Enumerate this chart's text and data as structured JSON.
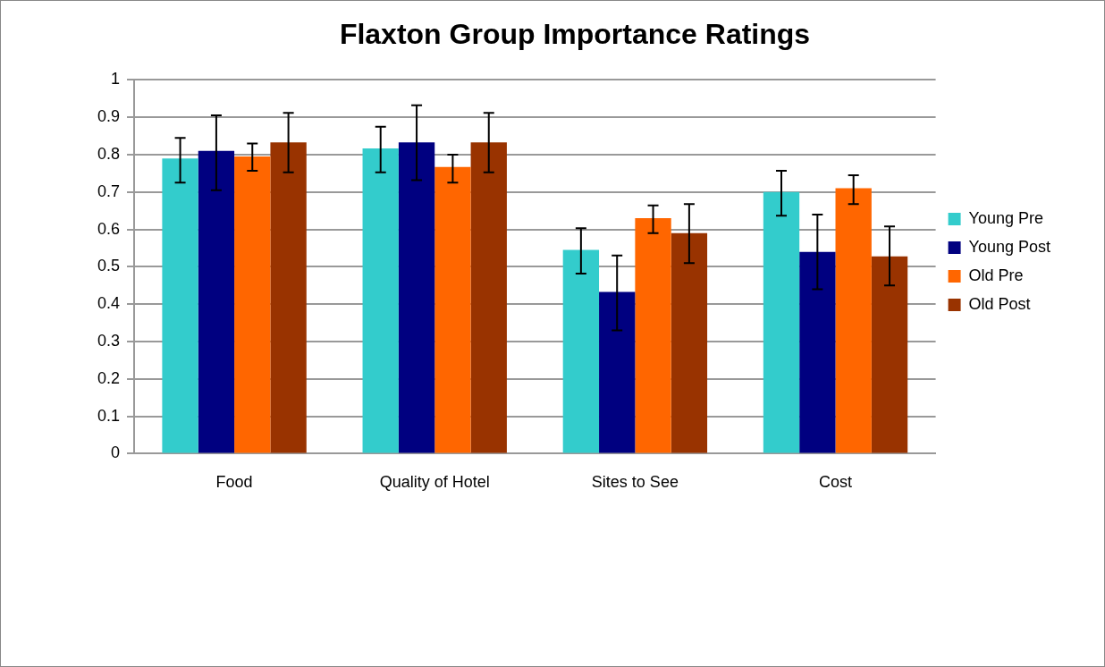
{
  "chart_data": {
    "type": "bar",
    "title": "Flaxton Group Importance Ratings",
    "categories": [
      "Food",
      "Quality of Hotel",
      "Sites to See",
      "Cost"
    ],
    "series": [
      {
        "name": "Young Pre",
        "color": "#33cccc",
        "values": [
          0.79,
          0.817,
          0.545,
          0.7
        ],
        "errors": [
          [
            0.725,
            0.845
          ],
          [
            0.753,
            0.875
          ],
          [
            0.482,
            0.603
          ],
          [
            0.637,
            0.757
          ]
        ]
      },
      {
        "name": "Young Post",
        "color": "#000080",
        "values": [
          0.81,
          0.833,
          0.433,
          0.54
        ],
        "errors": [
          [
            0.705,
            0.905
          ],
          [
            0.732,
            0.932
          ],
          [
            0.33,
            0.53
          ],
          [
            0.44,
            0.64
          ]
        ]
      },
      {
        "name": "Old Pre",
        "color": "#ff6600",
        "values": [
          0.795,
          0.767,
          0.63,
          0.71
        ],
        "errors": [
          [
            0.757,
            0.83
          ],
          [
            0.725,
            0.8
          ],
          [
            0.59,
            0.664
          ],
          [
            0.668,
            0.745
          ]
        ]
      },
      {
        "name": "Old Post",
        "color": "#993300",
        "values": [
          0.833,
          0.833,
          0.59,
          0.528
        ],
        "errors": [
          [
            0.753,
            0.912
          ],
          [
            0.753,
            0.912
          ],
          [
            0.51,
            0.668
          ],
          [
            0.45,
            0.608
          ]
        ]
      }
    ],
    "ylim": [
      0,
      1
    ],
    "yticks": [
      0,
      0.1,
      0.2,
      0.3,
      0.4,
      0.5,
      0.6,
      0.7,
      0.8,
      0.9,
      1
    ],
    "grid": "y",
    "legend": "right"
  }
}
